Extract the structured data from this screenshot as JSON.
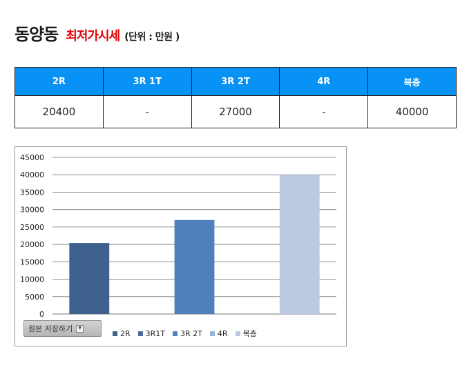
{
  "header": {
    "title": "동양동",
    "subtitle": "최저가시세",
    "unit": "(단위 : 만원 )"
  },
  "table": {
    "columns": [
      "2R",
      "3R 1T",
      "3R 2T",
      "4R",
      "복층"
    ],
    "values": [
      "20400",
      "-",
      "27000",
      "-",
      "40000"
    ]
  },
  "chart_data": {
    "type": "bar",
    "categories": [
      ""
    ],
    "series": [
      {
        "name": "2R",
        "values": [
          20400
        ],
        "color": "#3e6190"
      },
      {
        "name": "3R1T",
        "values": [
          0
        ],
        "color": "#4a6d98"
      },
      {
        "name": "3R 2T",
        "values": [
          27000
        ],
        "color": "#4f80bd"
      },
      {
        "name": "4R",
        "values": [
          0
        ],
        "color": "#95b3d8"
      },
      {
        "name": "복층",
        "values": [
          40000
        ],
        "color": "#bcc9e1"
      }
    ],
    "ylim": [
      0,
      45000
    ],
    "yticks": [
      0,
      5000,
      10000,
      15000,
      20000,
      25000,
      30000,
      35000,
      40000,
      45000
    ],
    "grid": true,
    "legend": "bottom"
  },
  "chart_ui": {
    "save_label": "원본 저장하기"
  }
}
